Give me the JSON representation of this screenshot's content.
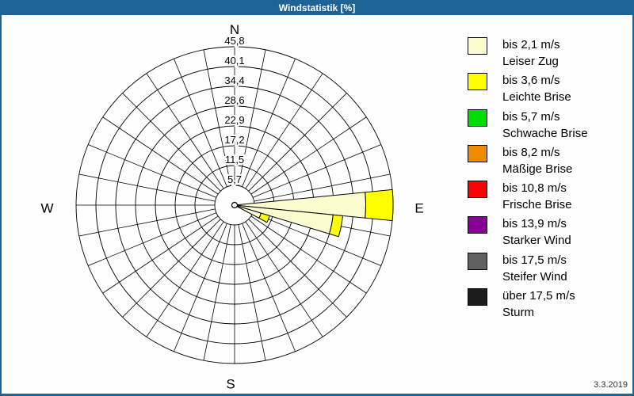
{
  "window": {
    "title": "Windstatistik [%]"
  },
  "colors": {
    "frame_blue": "#1e6396",
    "background": "#fefefe",
    "grid_line": "#000000"
  },
  "footer": {
    "date": "3.3.2019"
  },
  "chart_data": {
    "type": "windrose",
    "title": "Windstatistik [%]",
    "unit": "%",
    "sector_count": 32,
    "wedge_width_deg": 11.25,
    "grid": "polar, 8 rings + 32 spokes, on",
    "rmax": 45.8,
    "ring_step": 5.725,
    "ring_values": [
      5.7,
      11.5,
      17.2,
      22.9,
      28.6,
      34.4,
      40.1,
      45.8
    ],
    "ring_labels": [
      "5,7",
      "11,5",
      "17,2",
      "22,9",
      "28,6",
      "34,4",
      "40,1",
      "45,8"
    ],
    "compass": {
      "north": "N",
      "east": "E",
      "south": "S",
      "west": "W"
    },
    "wedges": [
      {
        "direction_deg": 90,
        "compass": "E",
        "segments": [
          {
            "speed_class": "bis 2,1 m/s",
            "value_pct": 37.9
          },
          {
            "speed_class": "bis 3,6 m/s",
            "value_pct": 7.9
          }
        ]
      },
      {
        "direction_deg": 101.25,
        "compass": "EbS",
        "segments": [
          {
            "speed_class": "bis 2,1 m/s",
            "value_pct": 28.6
          },
          {
            "speed_class": "bis 3,6 m/s",
            "value_pct": 2.8
          }
        ]
      },
      {
        "direction_deg": 112.5,
        "compass": "ESE",
        "segments": [
          {
            "speed_class": "bis 2,1 m/s",
            "value_pct": 8.0
          },
          {
            "speed_class": "bis 3,6 m/s",
            "value_pct": 2.6
          }
        ]
      }
    ]
  },
  "legend": {
    "items": [
      {
        "color": "#fbfbd0",
        "line1": "bis 2,1 m/s",
        "line2": "Leiser Zug",
        "speckled": false
      },
      {
        "color": "#ffff00",
        "line1": "bis 3,6 m/s",
        "line2": "Leichte Brise",
        "speckled": false
      },
      {
        "color": "#00dd00",
        "line1": "bis 5,7 m/s",
        "line2": "Schwache Brise",
        "speckled": false
      },
      {
        "color": "#f08a00",
        "line1": "bis 8,2 m/s",
        "line2": "Mäßige Brise",
        "speckled": false
      },
      {
        "color": "#fa0000",
        "line1": "bis 10,8 m/s",
        "line2": "Frische Brise",
        "speckled": false
      },
      {
        "color": "#8a0096",
        "line1": "bis 13,9 m/s",
        "line2": "Starker Wind",
        "speckled": false
      },
      {
        "color": "#616161",
        "line1": "bis 17,5 m/s",
        "line2": "Steifer Wind",
        "speckled": false
      },
      {
        "color": "#1c1c1c",
        "line1": "über 17,5 m/s",
        "line2": "Sturm",
        "speckled": true
      }
    ]
  }
}
